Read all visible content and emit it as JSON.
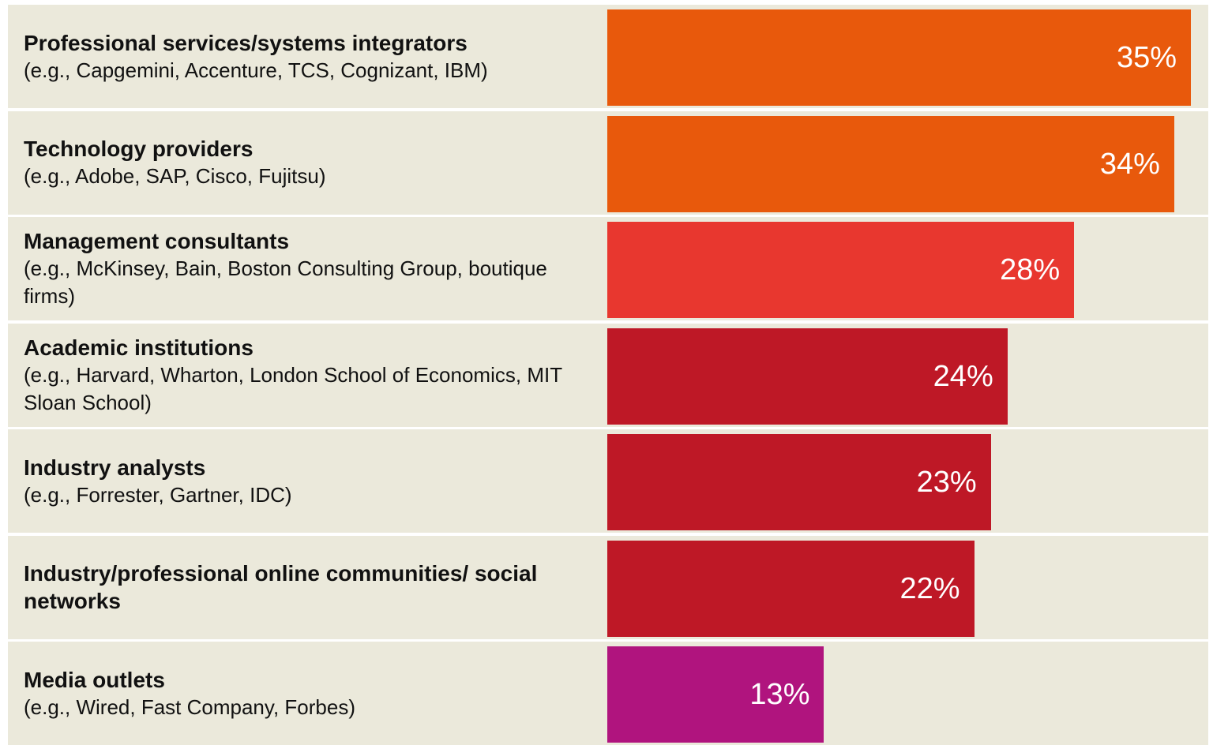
{
  "chart_data": {
    "type": "bar",
    "orientation": "horizontal",
    "categories": [
      "Professional services/systems integrators",
      "Technology providers",
      "Management consultants",
      "Academic institutions",
      "Industry analysts",
      "Industry/professional online communities/ social networks",
      "Media outlets"
    ],
    "descriptions": [
      "(e.g., Capgemini, Accenture, TCS, Cognizant, IBM)",
      "(e.g., Adobe, SAP, Cisco, Fujitsu)",
      "(e.g., McKinsey, Bain, Boston Consulting Group, boutique firms)",
      "(e.g., Harvard, Wharton, London School of Economics, MIT Sloan School)",
      "(e.g., Forrester, Gartner, IDC)",
      null,
      "(e.g., Wired, Fast Company, Forbes)"
    ],
    "values": [
      35,
      34,
      28,
      24,
      23,
      22,
      13
    ],
    "value_labels": [
      "35%",
      "34%",
      "28%",
      "24%",
      "23%",
      "22%",
      "13%"
    ],
    "colors": [
      "#e8590c",
      "#e8590c",
      "#e8372f",
      "#be1826",
      "#be1826",
      "#be1826",
      "#b0147e"
    ]
  }
}
